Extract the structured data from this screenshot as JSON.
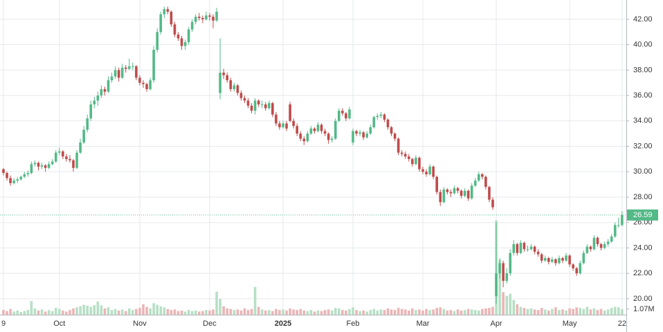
{
  "chart_data": {
    "type": "candlestick",
    "up_color": "#53b987",
    "down_color": "#c04b4b",
    "up_volume_color": "#b7dfc5",
    "down_volume_color": "#ebb5b5",
    "grid": true,
    "ylim": [
      18.74,
      43.52
    ],
    "yticks": [
      {
        "value": 20,
        "label": "20.00"
      },
      {
        "value": 22,
        "label": "22.00"
      },
      {
        "value": 24,
        "label": "24.00"
      },
      {
        "value": 26,
        "label": "26.00"
      },
      {
        "value": 28,
        "label": "28.00"
      },
      {
        "value": 30,
        "label": "30.00"
      },
      {
        "value": 32,
        "label": "32.00"
      },
      {
        "value": 34,
        "label": "34.00"
      },
      {
        "value": 36,
        "label": "36.00"
      },
      {
        "value": 38,
        "label": "38.00"
      },
      {
        "value": 40,
        "label": "40.00"
      },
      {
        "value": 42,
        "label": "42.00"
      }
    ],
    "volume_ylim": [
      0,
      60000000
    ],
    "volume_ticks": [
      {
        "value": 1070000,
        "label": "1.07M"
      }
    ],
    "categories": [
      "9",
      null,
      null,
      null,
      null,
      null,
      null,
      null,
      null,
      null,
      null,
      null,
      null,
      null,
      null,
      null,
      "Oct",
      null,
      null,
      null,
      null,
      null,
      null,
      null,
      null,
      null,
      null,
      null,
      null,
      null,
      null,
      null,
      null,
      null,
      null,
      null,
      null,
      null,
      null,
      "Nov",
      null,
      null,
      null,
      null,
      null,
      null,
      null,
      null,
      null,
      null,
      null,
      null,
      null,
      null,
      null,
      null,
      null,
      null,
      null,
      "Dec",
      null,
      null,
      null,
      null,
      null,
      null,
      null,
      null,
      null,
      null,
      null,
      null,
      null,
      null,
      null,
      null,
      null,
      null,
      null,
      null,
      "2025",
      null,
      null,
      null,
      null,
      null,
      null,
      null,
      null,
      null,
      null,
      null,
      null,
      null,
      null,
      null,
      null,
      null,
      null,
      null,
      "Feb",
      null,
      null,
      null,
      null,
      null,
      null,
      null,
      null,
      null,
      null,
      null,
      null,
      null,
      null,
      null,
      null,
      null,
      null,
      null,
      "Mar",
      null,
      null,
      null,
      null,
      null,
      null,
      null,
      null,
      null,
      null,
      null,
      null,
      null,
      null,
      null,
      null,
      null,
      null,
      null,
      null,
      "Apr",
      null,
      null,
      null,
      null,
      null,
      null,
      null,
      null,
      null,
      null,
      null,
      null,
      null,
      null,
      null,
      null,
      null,
      null,
      null,
      null,
      "May",
      null,
      null,
      null,
      null,
      null,
      null,
      null,
      null,
      null,
      null,
      null,
      null,
      null,
      null,
      "22"
    ],
    "ohlc": [
      [
        30.2,
        30.3,
        29.7,
        29.9
      ],
      [
        29.9,
        30.0,
        29.3,
        29.5
      ],
      [
        29.5,
        29.7,
        28.9,
        29.1
      ],
      [
        29.1,
        29.5,
        29.0,
        29.3
      ],
      [
        29.3,
        29.6,
        29.1,
        29.4
      ],
      [
        29.4,
        29.7,
        29.3,
        29.6
      ],
      [
        29.6,
        30.0,
        29.5,
        29.8
      ],
      [
        29.8,
        30.1,
        29.6,
        29.9
      ],
      [
        29.9,
        30.8,
        29.8,
        30.6
      ],
      [
        30.6,
        30.9,
        30.4,
        30.7
      ],
      [
        30.7,
        30.8,
        30.1,
        30.4
      ],
      [
        30.4,
        30.7,
        30.2,
        30.5
      ],
      [
        30.5,
        30.6,
        30.0,
        30.3
      ],
      [
        30.3,
        30.8,
        30.2,
        30.6
      ],
      [
        30.6,
        31.0,
        30.5,
        30.8
      ],
      [
        30.8,
        31.7,
        30.7,
        31.5
      ],
      [
        31.5,
        31.9,
        31.3,
        31.6
      ],
      [
        31.6,
        31.7,
        31.0,
        31.2
      ],
      [
        31.2,
        31.4,
        30.8,
        31.0
      ],
      [
        31.0,
        31.3,
        30.7,
        30.9
      ],
      [
        30.9,
        31.0,
        30.0,
        30.3
      ],
      [
        30.3,
        31.7,
        30.2,
        31.5
      ],
      [
        31.5,
        32.6,
        31.4,
        32.3
      ],
      [
        32.3,
        33.6,
        32.2,
        33.3
      ],
      [
        33.3,
        34.5,
        33.1,
        34.2
      ],
      [
        34.2,
        35.6,
        34.0,
        35.3
      ],
      [
        35.3,
        35.9,
        35.0,
        35.6
      ],
      [
        35.6,
        36.3,
        35.2,
        36.0
      ],
      [
        36.0,
        36.8,
        35.8,
        36.5
      ],
      [
        36.5,
        36.7,
        36.0,
        36.3
      ],
      [
        36.3,
        37.5,
        36.2,
        37.2
      ],
      [
        37.2,
        37.8,
        37.0,
        37.5
      ],
      [
        37.5,
        38.3,
        37.3,
        38.0
      ],
      [
        38.0,
        38.2,
        37.1,
        37.4
      ],
      [
        37.4,
        38.5,
        37.3,
        38.2
      ],
      [
        38.2,
        38.4,
        37.8,
        38.1
      ],
      [
        38.1,
        38.9,
        38.0,
        38.3
      ],
      [
        38.3,
        38.6,
        38.0,
        38.3
      ],
      [
        38.3,
        38.4,
        37.2,
        37.4
      ],
      [
        37.4,
        37.6,
        36.8,
        37.0
      ],
      [
        37.0,
        37.2,
        36.6,
        36.9
      ],
      [
        36.9,
        37.0,
        36.3,
        36.5
      ],
      [
        36.5,
        37.4,
        36.4,
        37.2
      ],
      [
        37.2,
        39.9,
        37.0,
        39.6
      ],
      [
        39.6,
        41.3,
        39.4,
        41.0
      ],
      [
        41.0,
        42.6,
        40.8,
        42.4
      ],
      [
        42.4,
        43.0,
        42.1,
        42.8
      ],
      [
        42.8,
        43.0,
        42.4,
        42.6
      ],
      [
        42.6,
        42.7,
        41.4,
        41.6
      ],
      [
        41.6,
        41.8,
        40.6,
        40.8
      ],
      [
        40.8,
        41.0,
        40.3,
        40.5
      ],
      [
        40.5,
        40.7,
        39.6,
        39.9
      ],
      [
        39.9,
        40.4,
        39.6,
        40.2
      ],
      [
        40.2,
        41.4,
        40.0,
        41.2
      ],
      [
        41.2,
        42.0,
        41.0,
        41.8
      ],
      [
        41.8,
        42.4,
        41.6,
        42.2
      ],
      [
        42.2,
        42.5,
        41.9,
        42.1
      ],
      [
        42.1,
        42.3,
        41.7,
        42.0
      ],
      [
        42.0,
        42.6,
        41.9,
        42.3
      ],
      [
        42.3,
        42.5,
        41.9,
        42.2
      ],
      [
        42.2,
        42.4,
        41.3,
        41.9
      ],
      [
        41.9,
        42.9,
        41.8,
        42.6
      ],
      [
        36.2,
        40.5,
        35.7,
        37.8
      ],
      [
        37.8,
        38.1,
        37.3,
        37.6
      ],
      [
        37.6,
        37.8,
        37.0,
        37.2
      ],
      [
        37.2,
        37.4,
        36.3,
        36.5
      ],
      [
        36.5,
        37.0,
        36.3,
        36.8
      ],
      [
        36.8,
        36.9,
        36.0,
        36.2
      ],
      [
        36.2,
        36.4,
        35.6,
        35.8
      ],
      [
        35.8,
        36.0,
        35.4,
        35.6
      ],
      [
        35.6,
        35.8,
        35.0,
        35.2
      ],
      [
        35.2,
        35.4,
        34.6,
        34.8
      ],
      [
        34.8,
        35.8,
        34.5,
        35.6
      ],
      [
        35.6,
        35.7,
        35.1,
        35.3
      ],
      [
        35.3,
        35.6,
        35.0,
        35.3
      ],
      [
        35.3,
        35.5,
        34.8,
        35.0
      ],
      [
        35.0,
        35.6,
        34.9,
        35.4
      ],
      [
        35.4,
        35.5,
        34.3,
        34.5
      ],
      [
        34.5,
        34.7,
        33.6,
        33.8
      ],
      [
        33.8,
        34.0,
        33.3,
        33.5
      ],
      [
        33.5,
        34.0,
        33.4,
        33.8
      ],
      [
        33.8,
        34.0,
        33.2,
        33.4
      ],
      [
        35.3,
        35.5,
        33.9,
        34.0
      ],
      [
        34.0,
        34.2,
        33.4,
        33.6
      ],
      [
        33.6,
        33.8,
        32.8,
        33.0
      ],
      [
        33.0,
        33.2,
        32.4,
        32.6
      ],
      [
        32.6,
        32.8,
        32.1,
        32.4
      ],
      [
        32.4,
        33.2,
        32.3,
        33.0
      ],
      [
        33.0,
        33.6,
        32.9,
        33.4
      ],
      [
        33.4,
        33.5,
        33.0,
        33.2
      ],
      [
        33.2,
        33.9,
        33.1,
        33.7
      ],
      [
        33.7,
        33.8,
        33.0,
        33.2
      ],
      [
        33.2,
        33.4,
        32.8,
        33.0
      ],
      [
        33.0,
        33.1,
        32.2,
        32.5
      ],
      [
        32.5,
        32.8,
        32.3,
        32.6
      ],
      [
        32.6,
        34.2,
        32.5,
        34.0
      ],
      [
        34.0,
        35.0,
        33.9,
        34.8
      ],
      [
        34.8,
        35.0,
        34.4,
        34.6
      ],
      [
        34.6,
        34.7,
        34.0,
        34.2
      ],
      [
        34.2,
        35.1,
        34.1,
        34.9
      ],
      [
        32.3,
        33.4,
        32.1,
        33.2
      ],
      [
        33.2,
        33.3,
        32.8,
        33.0
      ],
      [
        33.0,
        33.3,
        32.8,
        33.1
      ],
      [
        33.1,
        33.2,
        32.5,
        32.7
      ],
      [
        32.7,
        33.2,
        32.6,
        33.0
      ],
      [
        33.0,
        33.7,
        32.9,
        33.5
      ],
      [
        33.5,
        34.4,
        33.4,
        34.3
      ],
      [
        34.3,
        34.6,
        34.1,
        34.4
      ],
      [
        34.4,
        34.7,
        34.2,
        34.5
      ],
      [
        34.5,
        34.6,
        33.9,
        34.1
      ],
      [
        34.1,
        34.2,
        33.3,
        33.5
      ],
      [
        33.5,
        33.6,
        32.8,
        33.0
      ],
      [
        33.0,
        33.1,
        32.4,
        32.6
      ],
      [
        32.6,
        32.7,
        31.3,
        31.5
      ],
      [
        31.5,
        31.7,
        31.2,
        31.4
      ],
      [
        31.4,
        31.6,
        31.0,
        31.2
      ],
      [
        31.2,
        31.4,
        30.8,
        31.0
      ],
      [
        31.0,
        31.1,
        30.4,
        30.6
      ],
      [
        30.6,
        31.3,
        30.5,
        31.1
      ],
      [
        31.1,
        31.2,
        30.0,
        30.2
      ],
      [
        30.2,
        30.4,
        29.8,
        30.0
      ],
      [
        30.0,
        30.2,
        29.6,
        29.8
      ],
      [
        29.8,
        30.6,
        29.7,
        30.4
      ],
      [
        30.4,
        30.5,
        29.4,
        29.6
      ],
      [
        29.6,
        29.7,
        28.2,
        28.4
      ],
      [
        28.4,
        28.6,
        27.3,
        27.6
      ],
      [
        27.6,
        28.8,
        27.5,
        28.6
      ],
      [
        28.6,
        28.7,
        28.2,
        28.4
      ],
      [
        28.4,
        28.6,
        28.0,
        28.3
      ],
      [
        28.3,
        28.9,
        28.2,
        28.7
      ],
      [
        28.7,
        28.8,
        28.3,
        28.5
      ],
      [
        28.5,
        28.6,
        27.9,
        28.1
      ],
      [
        28.1,
        28.7,
        28.0,
        28.5
      ],
      [
        28.5,
        28.6,
        27.7,
        27.9
      ],
      [
        27.9,
        29.1,
        27.8,
        28.9
      ],
      [
        28.9,
        29.5,
        28.8,
        29.3
      ],
      [
        29.3,
        30.0,
        29.2,
        29.8
      ],
      [
        29.8,
        29.9,
        29.4,
        29.6
      ],
      [
        29.6,
        29.7,
        28.6,
        28.8
      ],
      [
        28.8,
        28.9,
        27.6,
        27.8
      ],
      [
        27.8,
        28.0,
        27.0,
        27.2
      ],
      [
        20.2,
        26.0,
        19.6,
        22.0
      ],
      [
        22.0,
        23.2,
        21.6,
        22.8
      ],
      [
        22.8,
        23.0,
        20.9,
        21.4
      ],
      [
        21.4,
        22.4,
        21.2,
        22.0
      ],
      [
        22.0,
        23.9,
        21.8,
        23.6
      ],
      [
        23.6,
        24.6,
        23.4,
        24.3
      ],
      [
        24.3,
        24.4,
        23.4,
        23.6
      ],
      [
        23.6,
        24.6,
        23.5,
        24.4
      ],
      [
        24.4,
        24.5,
        23.7,
        23.9
      ],
      [
        23.9,
        24.2,
        23.7,
        23.9
      ],
      [
        23.9,
        24.3,
        23.8,
        24.1
      ],
      [
        24.1,
        24.2,
        23.5,
        23.7
      ],
      [
        23.7,
        23.9,
        23.3,
        23.5
      ],
      [
        23.5,
        23.6,
        22.8,
        23.0
      ],
      [
        23.0,
        23.4,
        22.9,
        23.2
      ],
      [
        23.2,
        23.3,
        22.7,
        22.9
      ],
      [
        22.9,
        23.3,
        22.8,
        23.1
      ],
      [
        23.1,
        23.2,
        22.6,
        22.8
      ],
      [
        22.8,
        23.4,
        22.7,
        23.2
      ],
      [
        23.2,
        23.3,
        22.8,
        23.0
      ],
      [
        23.0,
        23.6,
        22.9,
        23.4
      ],
      [
        23.4,
        23.5,
        22.5,
        22.7
      ],
      [
        22.7,
        22.8,
        22.2,
        22.4
      ],
      [
        22.4,
        22.5,
        21.8,
        22.0
      ],
      [
        22.0,
        23.0,
        21.9,
        22.8
      ],
      [
        22.8,
        23.8,
        22.7,
        23.6
      ],
      [
        23.6,
        24.3,
        23.5,
        24.1
      ],
      [
        24.1,
        24.2,
        23.7,
        23.9
      ],
      [
        23.9,
        25.0,
        23.8,
        24.8
      ],
      [
        24.8,
        24.9,
        24.1,
        24.3
      ],
      [
        24.3,
        24.4,
        23.8,
        24.0
      ],
      [
        24.0,
        24.5,
        23.9,
        24.3
      ],
      [
        24.3,
        24.7,
        24.1,
        24.5
      ],
      [
        24.5,
        25.1,
        24.4,
        24.9
      ],
      [
        24.9,
        26.0,
        24.8,
        25.8
      ],
      [
        25.8,
        26.4,
        25.6,
        25.8
      ],
      [
        25.8,
        26.9,
        25.7,
        26.59
      ]
    ],
    "volume": [
      900000,
      700000,
      1100000,
      600000,
      800000,
      500000,
      700000,
      900000,
      2600000,
      1200000,
      800000,
      1000000,
      600000,
      900000,
      700000,
      1300000,
      1100000,
      800000,
      600000,
      900000,
      1200000,
      1400000,
      1600000,
      1900000,
      1700000,
      1500000,
      1800000,
      2500000,
      1800000,
      1200000,
      1400000,
      900000,
      1100000,
      800000,
      1000000,
      700000,
      1200000,
      900000,
      1100000,
      1300000,
      2000000,
      1500000,
      1200000,
      2200000,
      1900000,
      1600000,
      1400000,
      1100000,
      900000,
      1000000,
      700000,
      800000,
      600000,
      900000,
      700000,
      800000,
      600000,
      700000,
      900000,
      800000,
      1000000,
      4400000,
      3000000,
      1600000,
      1200000,
      1100000,
      900000,
      1000000,
      800000,
      1200000,
      900000,
      1100000,
      5300000,
      1500000,
      1000000,
      800000,
      900000,
      700000,
      1100000,
      900000,
      1000000,
      800000,
      1200000,
      1000000,
      900000,
      1100000,
      800000,
      700000,
      900000,
      600000,
      800000,
      700000,
      900000,
      1000000,
      800000,
      1300000,
      1200000,
      900000,
      800000,
      1100000,
      1400000,
      900000,
      700000,
      800000,
      600000,
      900000,
      1100000,
      800000,
      1000000,
      900000,
      1200000,
      1000000,
      900000,
      1300000,
      1100000,
      1000000,
      800000,
      1200000,
      900000,
      1000000,
      800000,
      1100000,
      900000,
      1000000,
      1300000,
      1400000,
      1100000,
      800000,
      900000,
      700000,
      1000000,
      800000,
      900000,
      1100000,
      1000000,
      900000,
      800000,
      1100000,
      1200000,
      1300000,
      1500000,
      18000000,
      10500000,
      4300000,
      3600000,
      4000000,
      2800000,
      2000000,
      1500000,
      1300000,
      1100000,
      1200000,
      1000000,
      900000,
      1300000,
      1000000,
      800000,
      1100000,
      1400000,
      900000,
      1000000,
      800000,
      1200000,
      1100000,
      1400000,
      1300000,
      1100000,
      1500000,
      1000000,
      1200000,
      900000,
      1100000,
      800000,
      1000000,
      1300000,
      1500000,
      1400000,
      1070000
    ]
  }
}
